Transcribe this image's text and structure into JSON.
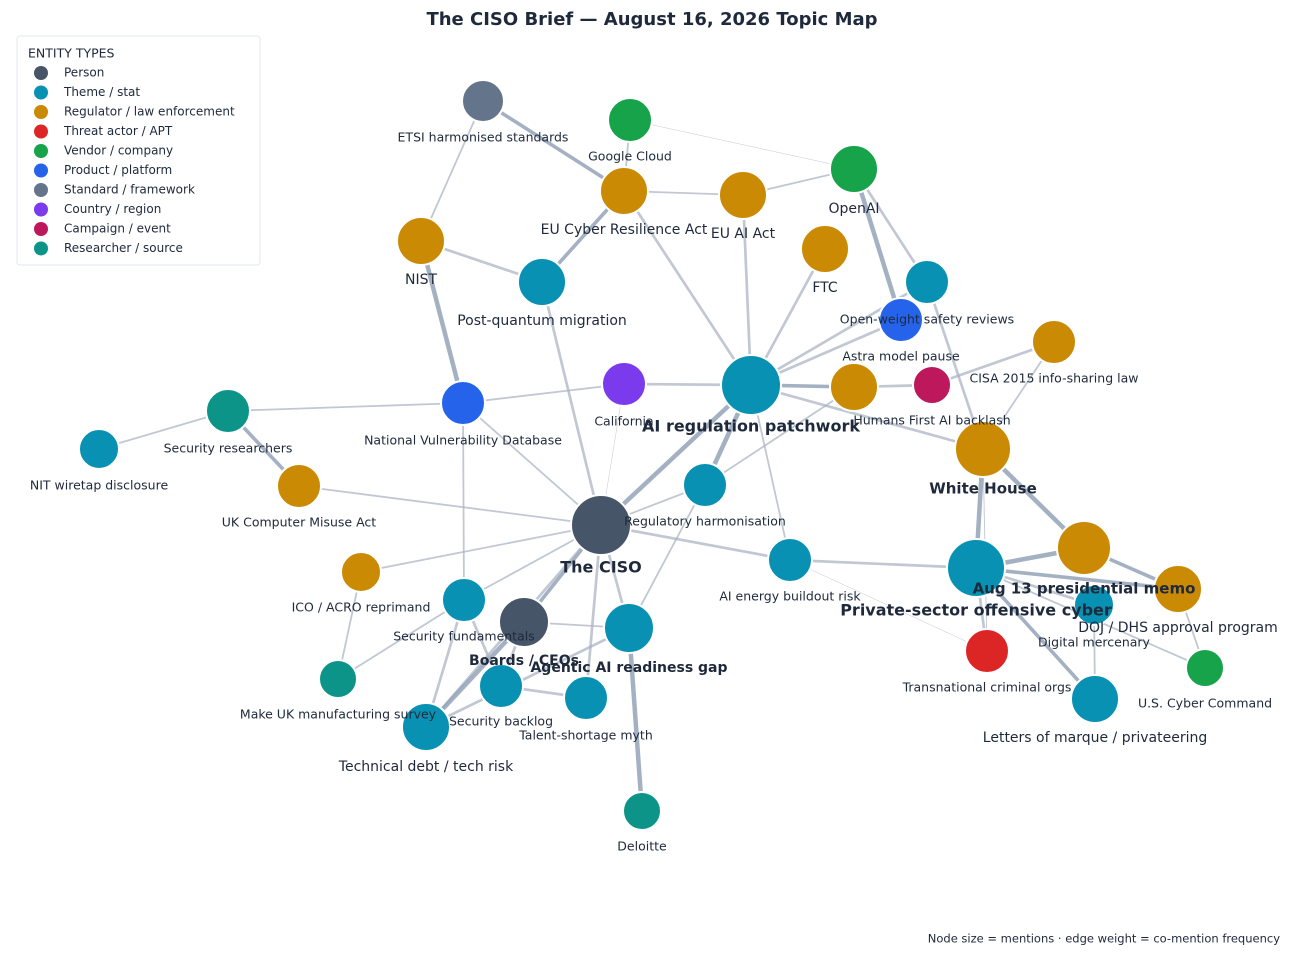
{
  "header": {
    "title": "The CISO Brief — August 16, 2026 Topic Map"
  },
  "legend": {
    "heading": "ENTITY TYPES",
    "items": [
      {
        "label": "Person",
        "color": "#475569"
      },
      {
        "label": "Theme / stat",
        "color": "#0891b2"
      },
      {
        "label": "Regulator / law enforcement",
        "color": "#ca8a04"
      },
      {
        "label": "Threat actor / APT",
        "color": "#dc2626"
      },
      {
        "label": "Vendor / company",
        "color": "#16a34a"
      },
      {
        "label": "Product / platform",
        "color": "#2563eb"
      },
      {
        "label": "Standard / framework",
        "color": "#64748b"
      },
      {
        "label": "Country / region",
        "color": "#7c3aed"
      },
      {
        "label": "Campaign / event",
        "color": "#be185d"
      },
      {
        "label": "Researcher / source",
        "color": "#0d9488"
      }
    ]
  },
  "nodes": [
    {
      "label": "ETSI harmonised standards"
    },
    {
      "label": "Google Cloud"
    },
    {
      "label": "OpenAI"
    },
    {
      "label": "EU Cyber Resilience Act"
    },
    {
      "label": "EU AI Act"
    },
    {
      "label": "NIST"
    },
    {
      "label": "FTC"
    },
    {
      "label": "Post-quantum migration"
    },
    {
      "label": "Open-weight safety reviews"
    },
    {
      "label": "Astra model pause"
    },
    {
      "label": "CISA 2015 info-sharing law"
    },
    {
      "label": "California"
    },
    {
      "label": "AI regulation patchwork"
    },
    {
      "label": "Humans First AI backlash"
    },
    {},
    {
      "label": "White House"
    },
    {
      "label": "Security researchers"
    },
    {
      "label": "National Vulnerability Database"
    },
    {
      "label": "NIT wiretap disclosure"
    },
    {
      "label": "UK Computer Misuse Act"
    },
    {
      "label": "Regulatory harmonisation"
    },
    {
      "label": "The CISO"
    },
    {
      "label": "Aug 13 presidential memo"
    },
    {
      "label": "AI energy buildout risk"
    },
    {
      "label": "Private-sector offensive cyber"
    },
    {
      "label": "ICO / ACRO reprimand"
    },
    {
      "label": "DOJ / DHS approval program"
    },
    {
      "label": "Digital mercenary"
    },
    {
      "label": "Security fundamentals"
    },
    {
      "label": "Boards / CEOs"
    },
    {
      "label": "Agentic AI readiness gap"
    },
    {
      "label": "Transnational criminal orgs"
    },
    {
      "label": "U.S. Cyber Command"
    },
    {
      "label": "Make UK manufacturing survey"
    },
    {
      "label": "Security backlog"
    },
    {
      "label": "Talent-shortage myth"
    },
    {
      "label": "Letters of marque / privateering"
    },
    {
      "label": "Technical debt / tech risk"
    },
    {
      "label": "Deloitte"
    }
  ],
  "footnote": "Node size = mentions  ·  edge weight = co-mention frequency"
}
